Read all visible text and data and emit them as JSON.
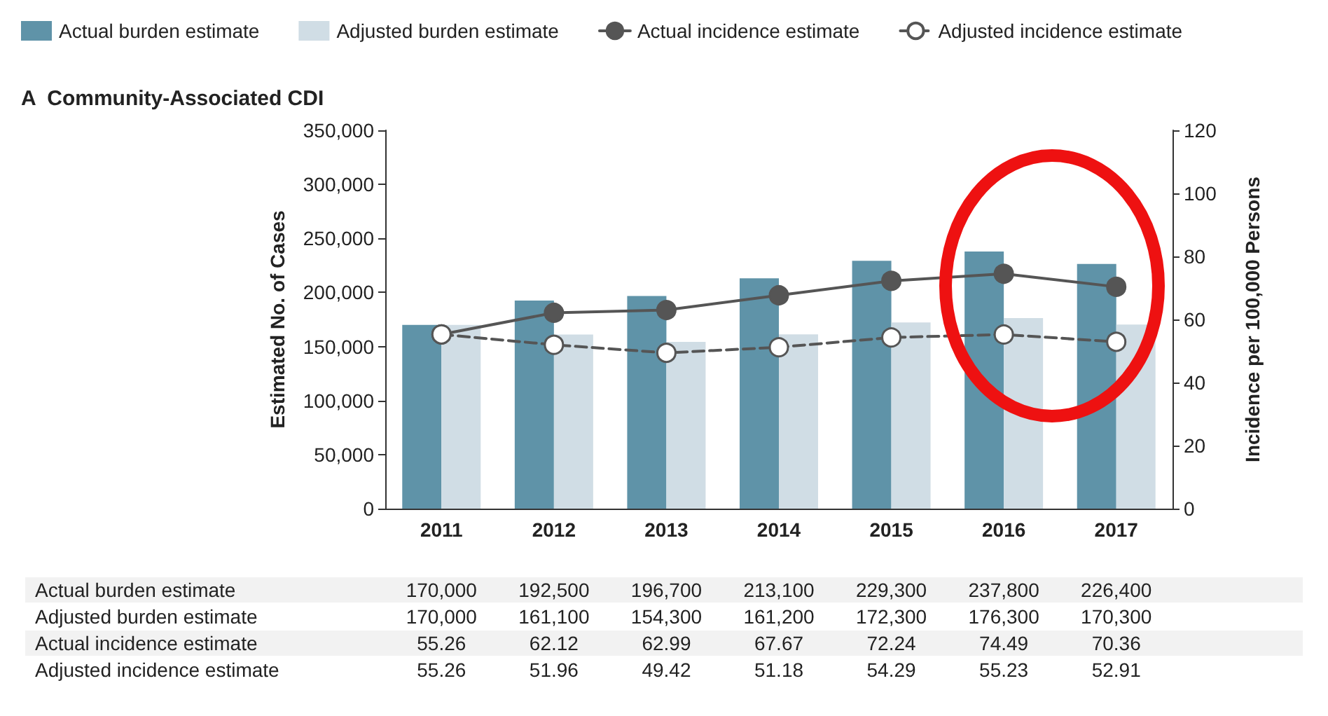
{
  "chart_data": {
    "type": "bar",
    "title": "A  Community-Associated CDI",
    "categories": [
      "2011",
      "2012",
      "2013",
      "2014",
      "2015",
      "2016",
      "2017"
    ],
    "series": [
      {
        "name": "Actual burden estimate",
        "color": "#5f93a8",
        "values": [
          170000,
          192500,
          196700,
          213100,
          229300,
          237800,
          226400
        ],
        "value_labels": [
          "170,000",
          "192,500",
          "196,700",
          "213,100",
          "229,300",
          "237,800",
          "226,400"
        ]
      },
      {
        "name": "Adjusted burden estimate",
        "color": "#d0dde5",
        "values": [
          170000,
          161100,
          154300,
          161200,
          172300,
          176300,
          170300
        ],
        "value_labels": [
          "170,000",
          "161,100",
          "154,300",
          "161,200",
          "172,300",
          "176,300",
          "170,300"
        ]
      },
      {
        "name": "Actual incidence estimate",
        "type": "line",
        "axis": "y2",
        "color": "#555555",
        "line_style": "solid",
        "values": [
          55.26,
          62.12,
          62.99,
          67.67,
          72.24,
          74.49,
          70.36
        ],
        "value_labels": [
          "55.26",
          "62.12",
          "62.99",
          "67.67",
          "72.24",
          "74.49",
          "70.36"
        ]
      },
      {
        "name": "Adjusted incidence estimate",
        "type": "line",
        "axis": "y2",
        "color": "#555555",
        "line_style": "dashed",
        "values": [
          55.26,
          51.96,
          49.42,
          51.18,
          54.29,
          55.23,
          52.91
        ],
        "value_labels": [
          "55.26",
          "51.96",
          "49.42",
          "51.18",
          "54.29",
          "55.23",
          "52.91"
        ]
      }
    ],
    "ylabel": "Estimated No. of Cases",
    "y2label": "Incidence per 100,000 Persons",
    "ylim": [
      0,
      350000
    ],
    "yticks": [
      0,
      {
        "value": 50000,
        "label": "50,000"
      },
      {
        "value": 100000,
        "label": "100,000"
      },
      {
        "value": 150000,
        "label": "150,000"
      },
      {
        "value": 200000,
        "label": "200,000"
      },
      {
        "value": 250000,
        "label": "250,000"
      },
      {
        "value": 300000,
        "label": "300,000"
      },
      {
        "value": 350000,
        "label": "350,000"
      }
    ],
    "y2lim": [
      0,
      120
    ],
    "y2ticks": [
      0,
      20,
      40,
      60,
      80,
      100,
      120
    ],
    "legend": "top",
    "marker": "circle",
    "grid": false
  }
}
